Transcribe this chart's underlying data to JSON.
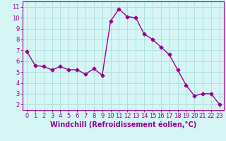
{
  "x": [
    0,
    1,
    2,
    3,
    4,
    5,
    6,
    7,
    8,
    9,
    10,
    11,
    12,
    13,
    14,
    15,
    16,
    17,
    18,
    19,
    20,
    21,
    22,
    23
  ],
  "y": [
    6.9,
    5.6,
    5.5,
    5.2,
    5.5,
    5.2,
    5.2,
    4.8,
    5.3,
    4.7,
    9.7,
    10.8,
    10.1,
    10.0,
    8.5,
    8.0,
    7.3,
    6.6,
    5.2,
    3.8,
    2.8,
    3.0,
    3.0,
    2.0
  ],
  "line_color": "#990099",
  "marker": "D",
  "markersize": 2.5,
  "linewidth": 1.0,
  "bg_color": "#d6f5f5",
  "grid_color": "#aadddd",
  "xlabel": "Windchill (Refroidissement éolien,°C)",
  "xlabel_color": "#990099",
  "tick_color": "#990099",
  "xlabel_fontsize": 7.0,
  "ylabel_ticks": [
    2,
    3,
    4,
    5,
    6,
    7,
    8,
    9,
    10,
    11
  ],
  "xlabel_ticks": [
    0,
    1,
    2,
    3,
    4,
    5,
    6,
    7,
    8,
    9,
    10,
    11,
    12,
    13,
    14,
    15,
    16,
    17,
    18,
    19,
    20,
    21,
    22,
    23
  ],
  "ylim": [
    1.5,
    11.5
  ],
  "xlim": [
    -0.5,
    23.5
  ],
  "tick_fontsize": 6.0,
  "spine_color": "#990099"
}
